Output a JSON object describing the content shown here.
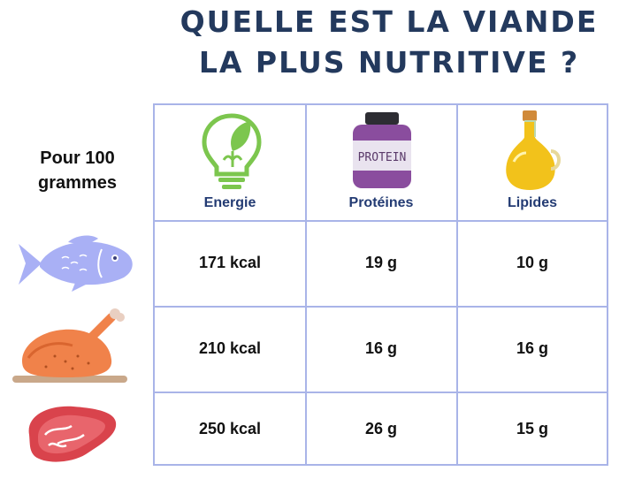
{
  "title": {
    "line1": "QUELLE EST LA VIANDE",
    "line2": "LA PLUS NUTRITIVE ?"
  },
  "row_header": "Pour 100 grammes",
  "row_header_lines": [
    "Pour 100",
    "grammes"
  ],
  "columns": [
    {
      "label": "Energie",
      "icon": "lightbulb-leaf-icon"
    },
    {
      "label": "Protéines",
      "icon": "protein-jar-icon"
    },
    {
      "label": "Lipides",
      "icon": "oil-bottle-icon"
    }
  ],
  "protein_jar_text": "PROTEIN",
  "rows": [
    {
      "icon": "fish-icon",
      "values": [
        "171 kcal",
        "19 g",
        "10 g"
      ]
    },
    {
      "icon": "chicken-icon",
      "values": [
        "210 kcal",
        "16 g",
        "16 g"
      ]
    },
    {
      "icon": "steak-icon",
      "values": [
        "250 kcal",
        "26 g",
        "15 g"
      ]
    }
  ],
  "colors": {
    "title": "#23395d",
    "grid": "#a9b4e8",
    "header_label": "#233b73",
    "fish": "#a9b0f5",
    "chicken": "#f0824a",
    "steak": "#d9434c",
    "bulb": "#7cc64e",
    "protein": "#8a4d9e",
    "oil": "#f2c21b"
  }
}
